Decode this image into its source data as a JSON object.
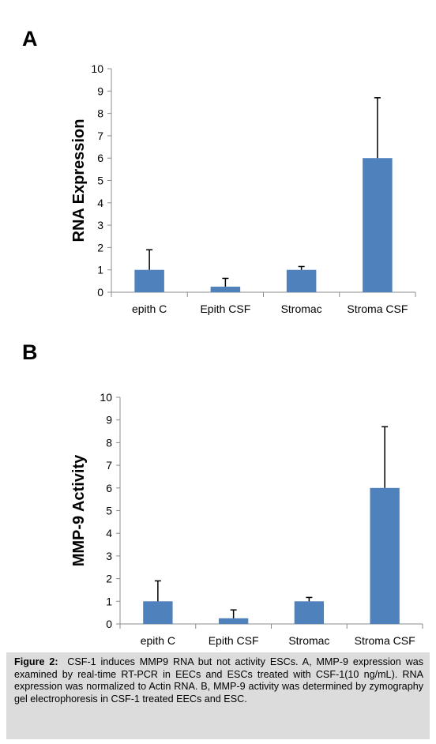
{
  "caption": {
    "label": "Figure 2:",
    "text": "CSF-1 induces MMP9 RNA but not activity ESCs. A, MMP-9 expression was examined by real-time RT-PCR in EECs and ESCs treated with CSF-1(10 ng/mL). RNA expression was normalized to Actin RNA. B, MMP-9 activity was determined by zymography gel electrophoresis in CSF-1 treated EECs and ESC."
  },
  "colors": {
    "bar": "#4f81bd",
    "error": "#000000",
    "axis": "#8c8c8c"
  },
  "chart_data": [
    {
      "panel": "A",
      "type": "bar",
      "title": "",
      "ylabel": "RNA Expression",
      "xlabel": "",
      "ylim": [
        0,
        10
      ],
      "yticks": [
        0,
        1,
        2,
        3,
        4,
        5,
        6,
        7,
        8,
        9,
        10
      ],
      "categories": [
        "epith C",
        "Epith CSF",
        "Stromac",
        "Stroma CSF"
      ],
      "values": [
        1,
        0.25,
        1,
        6
      ],
      "error_upper": [
        1.9,
        0.62,
        1.15,
        8.7
      ],
      "grid": false
    },
    {
      "panel": "B",
      "type": "bar",
      "title": "",
      "ylabel": "MMP-9 Activity",
      "xlabel": "",
      "ylim": [
        0,
        10
      ],
      "yticks": [
        0,
        1,
        2,
        3,
        4,
        5,
        6,
        7,
        8,
        9,
        10
      ],
      "categories": [
        "epith C",
        "Epith CSF",
        "Stromac",
        "Stroma CSF"
      ],
      "values": [
        1,
        0.25,
        1,
        6
      ],
      "error_upper": [
        1.9,
        0.62,
        1.17,
        8.7
      ],
      "grid": false
    }
  ]
}
